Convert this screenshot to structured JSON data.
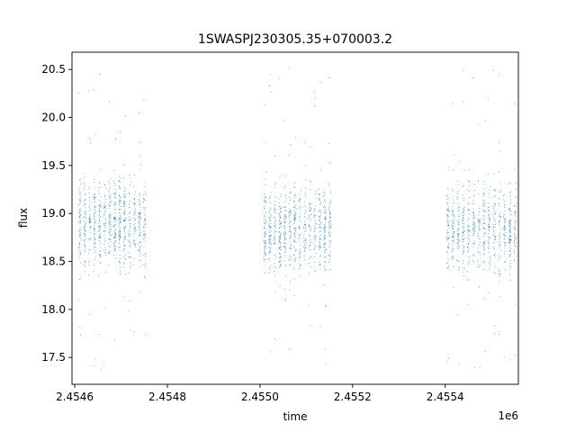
{
  "chart_data": {
    "type": "scatter",
    "title": "1SWASPJ230305.35+070003.2",
    "xlabel": "time",
    "ylabel": "flux",
    "x_offset_label": "1e6",
    "xlim": [
      2454594,
      2455558
    ],
    "ylim": [
      17.22,
      20.68
    ],
    "x_ticks": [
      2454600,
      2454800,
      2455000,
      2455200,
      2455400
    ],
    "x_tick_labels": [
      "2.4546",
      "2.4548",
      "2.4550",
      "2.4552",
      "2.4554"
    ],
    "y_ticks": [
      17.5,
      18.0,
      18.5,
      19.0,
      19.5,
      20.0,
      20.5
    ],
    "y_tick_labels": [
      "17.5",
      "18.0",
      "18.5",
      "19.0",
      "19.5",
      "20.0",
      "20.5"
    ],
    "grid": false,
    "marker_color": "#1f77b4",
    "observation_clusters": [
      {
        "x_range": [
          2454610,
          2454750
        ],
        "center_flux": 18.9,
        "y_range": [
          17.3,
          20.5
        ]
      },
      {
        "x_range": [
          2455010,
          2455150
        ],
        "center_flux": 18.85,
        "y_range": [
          17.35,
          20.55
        ]
      },
      {
        "x_range": [
          2455405,
          2455550
        ],
        "center_flux": 18.85,
        "y_range": [
          17.35,
          20.5
        ]
      }
    ]
  }
}
